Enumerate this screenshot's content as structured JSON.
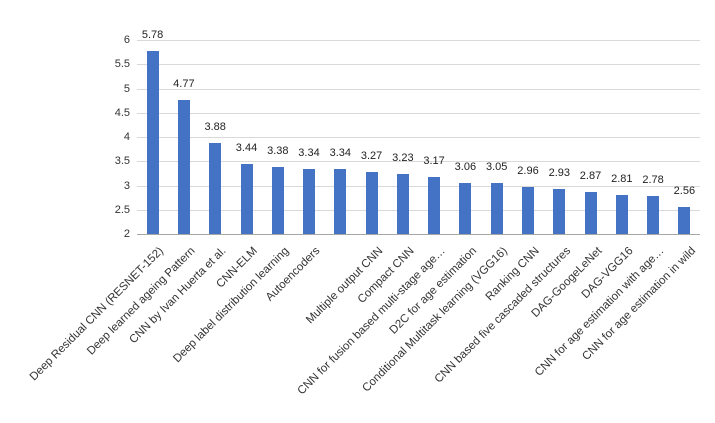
{
  "chart_data": {
    "type": "bar",
    "title": "",
    "xlabel": "",
    "ylabel": "",
    "categories": [
      "Deep Residual CNN (RESNET-152)",
      "Deep learned ageing Pattern",
      "CNN by Ivan Huerta et al.",
      "CNN-ELM",
      "Deep label distribution learning",
      "Autoencoders",
      "",
      "Multiple output CNN",
      "Compact CNN",
      "CNN for fusion based multi-stage age…",
      "D2C for age estimation",
      "Conditional Multitask learning (VGG16)",
      "Ranking CNN",
      "CNN based five cascaded structures",
      "DAG-GoogeLeNet",
      "DAG-VGG16",
      "CNN for age estimation with age…",
      "CNN for age estimation in wild"
    ],
    "values": [
      5.78,
      4.77,
      3.88,
      3.44,
      3.38,
      3.34,
      3.34,
      3.27,
      3.23,
      3.17,
      3.06,
      3.05,
      2.96,
      2.93,
      2.87,
      2.81,
      2.78,
      2.56
    ],
    "value_labels": [
      "5.78",
      "4.77",
      "3.88",
      "3.44",
      "3.38",
      "3.34",
      "3.34",
      "3.27",
      "3.23",
      "3.17",
      "3.06",
      "3.05",
      "2.96",
      "2.93",
      "2.87",
      "2.81",
      "2.78",
      "2.56"
    ],
    "ylim": [
      2,
      6
    ],
    "yticks": [
      6,
      5.5,
      5,
      4.5,
      4,
      3.5,
      3,
      2.5,
      2
    ],
    "grid": "horizontal",
    "legend_position": "none",
    "category_label_rotation_deg": -45,
    "colors": {
      "bar": "#4472C4",
      "gridline": "#D9D9D9",
      "axis_line": "#A6A6A6",
      "tick_label": "#333333",
      "data_label": "#1f1f1f",
      "background": "#ffffff"
    }
  }
}
